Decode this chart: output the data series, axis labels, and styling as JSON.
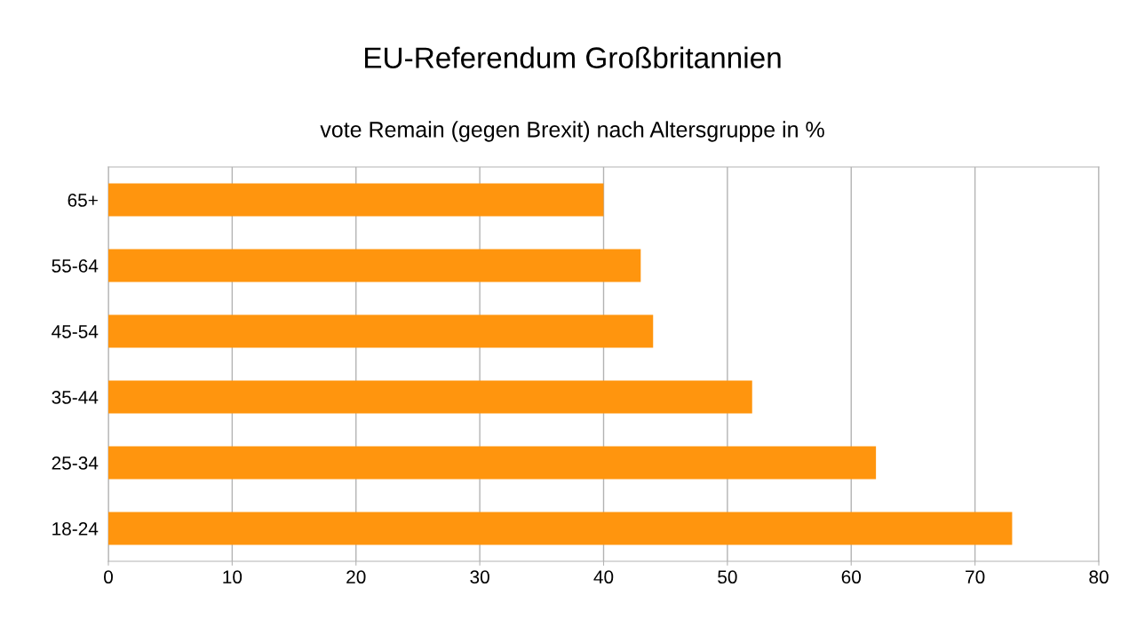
{
  "chart_data": {
    "type": "bar",
    "orientation": "horizontal",
    "title": "EU-Referendum Großbritannien",
    "subtitle": "vote Remain (gegen Brexit) nach Altersgruppe in %",
    "categories": [
      "65+",
      "55-64",
      "45-54",
      "35-44",
      "25-34",
      "18-24"
    ],
    "values": [
      40,
      43,
      44,
      52,
      62,
      73
    ],
    "color": "#ff950e",
    "xlim": [
      0,
      80
    ],
    "xticks": [
      0,
      10,
      20,
      30,
      40,
      50,
      60,
      70,
      80
    ],
    "grid": "x"
  }
}
